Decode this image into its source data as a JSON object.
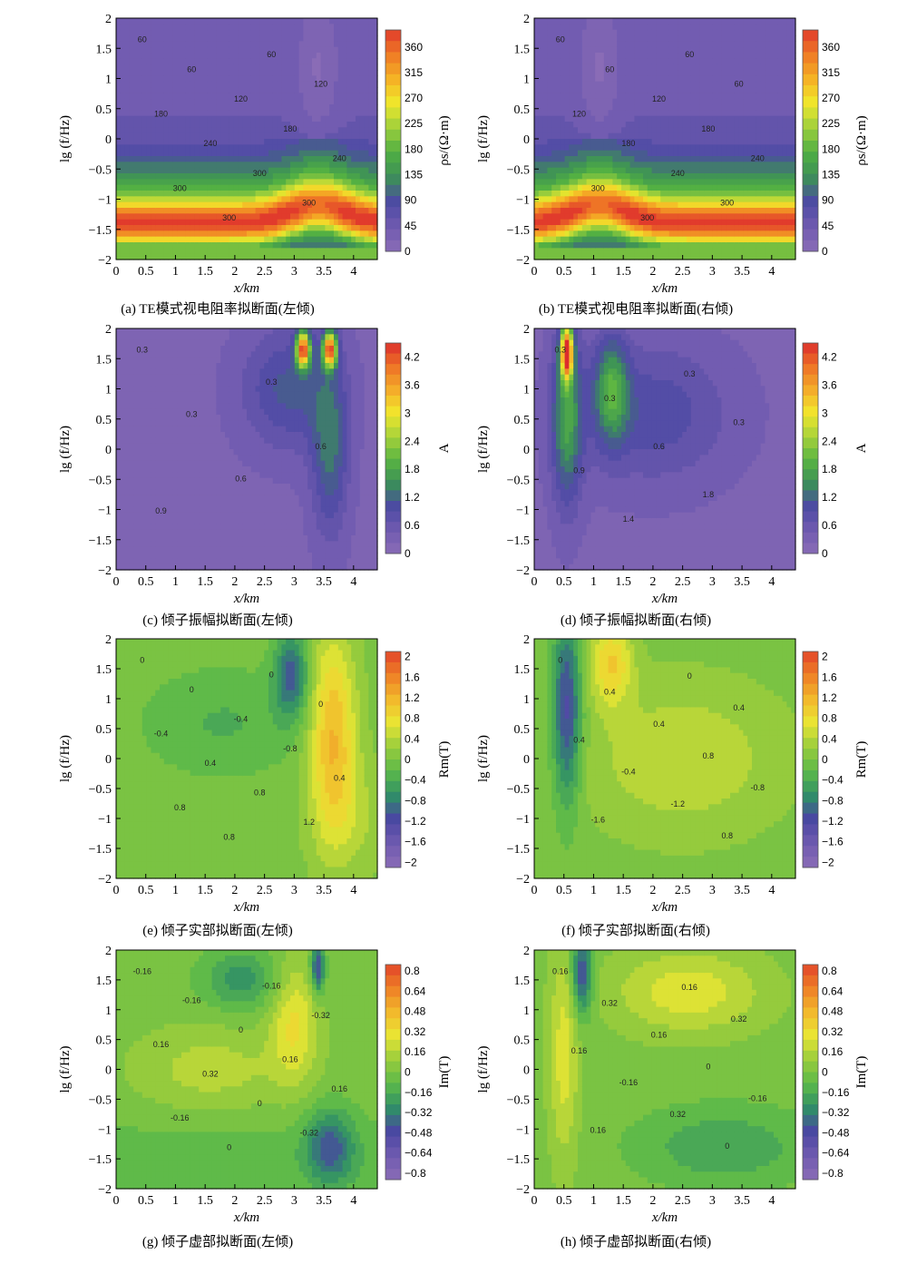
{
  "chart_data": [
    {
      "type": "heatmap",
      "id": "a",
      "caption": "(a) TE模式视电阻率拟断面(左倾)",
      "xlabel": "x/km",
      "ylabel": "lg (f/Hz)",
      "xlim": [
        0,
        4.4
      ],
      "ylim": [
        -2,
        2
      ],
      "x_ticks": [
        "0",
        "0.5",
        "1",
        "1.5",
        "2",
        "2.5",
        "3",
        "3.5",
        "4"
      ],
      "y_ticks": [
        "−2",
        "−1.5",
        "−1",
        "−0.5",
        "0",
        "0.5",
        "1",
        "1.5",
        "2"
      ],
      "colorbar_label": "ρs/(Ω·m)",
      "colorbar_ticks": [
        "0",
        "45",
        "90",
        "135",
        "180",
        "225",
        "270",
        "315",
        "360"
      ],
      "colorbar_range": [
        0,
        390
      ],
      "colorscale": "rho",
      "contour_labels": [
        "60",
        "60",
        "60",
        "120",
        "120",
        "180",
        "180",
        "240",
        "240",
        "300",
        "300",
        "300",
        "300"
      ],
      "field": {
        "kind": "rho",
        "dip": "left",
        "center_x": 3.4
      }
    },
    {
      "type": "heatmap",
      "id": "b",
      "caption": "(b) TE模式视电阻率拟断面(右倾)",
      "xlabel": "x/km",
      "ylabel": "lg (f/Hz)",
      "xlim": [
        0,
        4.4
      ],
      "ylim": [
        -2,
        2
      ],
      "x_ticks": [
        "0",
        "0.5",
        "1",
        "1.5",
        "2",
        "2.5",
        "3",
        "3.5",
        "4"
      ],
      "y_ticks": [
        "−2",
        "−1.5",
        "−1",
        "−0.5",
        "0",
        "0.5",
        "1",
        "1.5",
        "2"
      ],
      "colorbar_label": "ρs/(Ω·m)",
      "colorbar_ticks": [
        "0",
        "45",
        "90",
        "135",
        "180",
        "225",
        "270",
        "315",
        "360"
      ],
      "colorbar_range": [
        0,
        390
      ],
      "colorscale": "rho",
      "contour_labels": [
        "60",
        "60",
        "60",
        "60",
        "120",
        "120",
        "180",
        "180",
        "240",
        "240",
        "300",
        "300",
        "300"
      ],
      "field": {
        "kind": "rho",
        "dip": "right",
        "center_x": 1.1
      }
    },
    {
      "type": "heatmap",
      "id": "c",
      "caption": "(c) 倾子振幅拟断面(左倾)",
      "xlabel": "x/km",
      "ylabel": "lg (f/Hz)",
      "xlim": [
        0,
        4.4
      ],
      "ylim": [
        -2,
        2
      ],
      "x_ticks": [
        "0",
        "0.5",
        "1",
        "1.5",
        "2",
        "2.5",
        "3",
        "3.5",
        "4"
      ],
      "y_ticks": [
        "−2",
        "−1.5",
        "−1",
        "−0.5",
        "0",
        "0.5",
        "1",
        "1.5",
        "2"
      ],
      "colorbar_label": "A",
      "colorbar_ticks": [
        "0",
        "0.6",
        "1.2",
        "1.8",
        "2.4",
        "3",
        "3.6",
        "4.2"
      ],
      "colorbar_range": [
        0,
        4.5
      ],
      "colorscale": "amp",
      "contour_labels": [
        "0.3",
        "0.3",
        "0.3",
        "0.6",
        "0.6",
        "0.9"
      ],
      "field": {
        "kind": "amp",
        "dip": "left",
        "center_x": 3.4
      }
    },
    {
      "type": "heatmap",
      "id": "d",
      "caption": "(d) 倾子振幅拟断面(右倾)",
      "xlabel": "x/km",
      "ylabel": "lg (f/Hz)",
      "xlim": [
        0,
        4.4
      ],
      "ylim": [
        -2,
        2
      ],
      "x_ticks": [
        "0",
        "0.5",
        "1",
        "1.5",
        "2",
        "2.5",
        "3",
        "3.5",
        "4"
      ],
      "y_ticks": [
        "−2",
        "−1.5",
        "−1",
        "−0.5",
        "0",
        "0.5",
        "1",
        "1.5",
        "2"
      ],
      "colorbar_label": "A",
      "colorbar_ticks": [
        "0",
        "0.6",
        "1.2",
        "1.8",
        "2.4",
        "3",
        "3.6",
        "4.2"
      ],
      "colorbar_range": [
        0,
        4.5
      ],
      "colorscale": "amp",
      "contour_labels": [
        "0.3",
        "0.3",
        "0.3",
        "0.3",
        "0.6",
        "0.9",
        "1.8",
        "1.4"
      ],
      "field": {
        "kind": "amp",
        "dip": "right",
        "center_x": 0.85
      }
    },
    {
      "type": "heatmap",
      "id": "e",
      "caption": "(e) 倾子实部拟断面(左倾)",
      "xlabel": "x/km",
      "ylabel": "lg (f/Hz)",
      "xlim": [
        0,
        4.4
      ],
      "ylim": [
        -2,
        2
      ],
      "x_ticks": [
        "0",
        "0.5",
        "1",
        "1.5",
        "2",
        "2.5",
        "3",
        "3.5",
        "4"
      ],
      "y_ticks": [
        "−2",
        "−1.5",
        "−1",
        "−0.5",
        "0",
        "0.5",
        "1",
        "1.5",
        "2"
      ],
      "colorbar_label": "Rm(T)",
      "colorbar_ticks": [
        "−2",
        "−1.6",
        "−1.2",
        "−0.8",
        "−0.4",
        "0",
        "0.4",
        "0.8",
        "1.2",
        "1.6",
        "2"
      ],
      "colorbar_range": [
        -2.1,
        2.1
      ],
      "colorscale": "div",
      "contour_labels": [
        "0",
        "0",
        "0",
        "0",
        "-0.4",
        "-0.4",
        "-0.8",
        "0.4",
        "0.4",
        "0.8",
        "0.8",
        "1.2",
        "0.8"
      ],
      "field": {
        "kind": "real",
        "dip": "left",
        "center_x": 3.3
      }
    },
    {
      "type": "heatmap",
      "id": "f",
      "caption": "(f) 倾子实部拟断面(右倾)",
      "xlabel": "x/km",
      "ylabel": "lg (f/Hz)",
      "xlim": [
        0,
        4.4
      ],
      "ylim": [
        -2,
        2
      ],
      "x_ticks": [
        "0",
        "0.5",
        "1",
        "1.5",
        "2",
        "2.5",
        "3",
        "3.5",
        "4"
      ],
      "y_ticks": [
        "−2",
        "−1.5",
        "−1",
        "−0.5",
        "0",
        "0.5",
        "1",
        "1.5",
        "2"
      ],
      "colorbar_label": "Rm(T)",
      "colorbar_ticks": [
        "−2",
        "−1.6",
        "−1.2",
        "−0.8",
        "−0.4",
        "0",
        "0.4",
        "0.8",
        "1.2",
        "1.6",
        "2"
      ],
      "colorbar_range": [
        -2.1,
        2.1
      ],
      "colorscale": "div",
      "contour_labels": [
        "0",
        "0",
        "0.4",
        "0.4",
        "0.4",
        "0.4",
        "0.8",
        "-0.4",
        "-0.8",
        "-1.2",
        "-1.6",
        "0.8"
      ],
      "field": {
        "kind": "real",
        "dip": "right",
        "center_x": 0.9
      }
    },
    {
      "type": "heatmap",
      "id": "g",
      "caption": "(g) 倾子虚部拟断面(左倾)",
      "xlabel": "x/km",
      "ylabel": "lg (f/Hz)",
      "xlim": [
        0,
        4.4
      ],
      "ylim": [
        -2,
        2
      ],
      "x_ticks": [
        "0",
        "0.5",
        "1",
        "1.5",
        "2",
        "2.5",
        "3",
        "3.5",
        "4"
      ],
      "y_ticks": [
        "−2",
        "−1.5",
        "−1",
        "−0.5",
        "0",
        "0.5",
        "1",
        "1.5",
        "2"
      ],
      "colorbar_label": "Im(T)",
      "colorbar_ticks": [
        "0.8",
        "0.64",
        "0.48",
        "0.32",
        "0.16",
        "0",
        "−0.16",
        "−0.32",
        "−0.48",
        "−0.64",
        "−0.8"
      ],
      "colorbar_range": [
        -0.85,
        0.85
      ],
      "colorscale": "div",
      "contour_labels": [
        "-0.16",
        "-0.16",
        "-0.16",
        "-0.32",
        "0",
        "0.16",
        "0.16",
        "0.32",
        "0.16",
        "0",
        "-0.16",
        "-0.32",
        "0"
      ],
      "field": {
        "kind": "imag",
        "dip": "left",
        "center_x": 3.4
      }
    },
    {
      "type": "heatmap",
      "id": "h",
      "caption": "(h) 倾子虚部拟断面(右倾)",
      "xlabel": "x/km",
      "ylabel": "lg (f/Hz)",
      "xlim": [
        0,
        4.4
      ],
      "ylim": [
        -2,
        2
      ],
      "x_ticks": [
        "0",
        "0.5",
        "1",
        "1.5",
        "2",
        "2.5",
        "3",
        "3.5",
        "4"
      ],
      "y_ticks": [
        "−2",
        "−1.5",
        "−1",
        "−0.5",
        "0",
        "0.5",
        "1",
        "1.5",
        "2"
      ],
      "colorbar_label": "Im(T)",
      "colorbar_ticks": [
        "0.8",
        "0.64",
        "0.48",
        "0.32",
        "0.16",
        "0",
        "−0.16",
        "−0.32",
        "−0.48",
        "−0.64",
        "−0.8"
      ],
      "colorbar_range": [
        -0.85,
        0.85
      ],
      "colorscale": "div",
      "contour_labels": [
        "0.16",
        "0.16",
        "0.32",
        "0.32",
        "0.16",
        "0.16",
        "0",
        "-0.16",
        "-0.16",
        "0.32",
        "0.16",
        "0"
      ],
      "field": {
        "kind": "imag",
        "dip": "right",
        "center_x": 0.8
      }
    }
  ],
  "palettes": {
    "rho": [
      "#8a6cb6",
      "#6f5ab0",
      "#4c4aa3",
      "#3d8f58",
      "#4fae43",
      "#9ccf3c",
      "#f0e82c",
      "#f5b225",
      "#ef7a25",
      "#e13b2c"
    ],
    "amp": [
      "#8a6cb6",
      "#6f5ab0",
      "#4c4aa3",
      "#3a8f58",
      "#5ab542",
      "#a8d23a",
      "#f2e62c",
      "#f4ac2a",
      "#ee7326",
      "#dc2d2d"
    ],
    "div": [
      "#8a6cb6",
      "#6f5ab0",
      "#4a47a2",
      "#2f8f67",
      "#5cb94a",
      "#98cc3c",
      "#e9e634",
      "#f2b92c",
      "#ee8026",
      "#e2452a"
    ]
  }
}
